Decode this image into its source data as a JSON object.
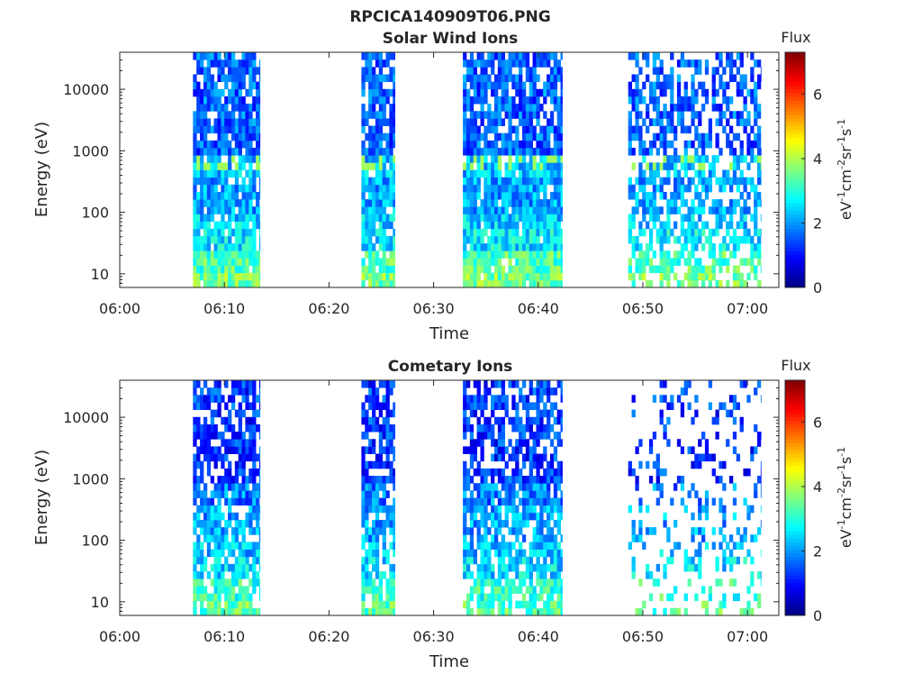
{
  "figure": {
    "title": "RPCICA140909T06.PNG"
  },
  "colorbar": {
    "label": "Flux",
    "unit_main": "eV",
    "unit_parts": [
      {
        "text": "eV",
        "sup": false
      },
      {
        "text": "-1",
        "sup": true
      },
      {
        "text": "cm",
        "sup": false
      },
      {
        "text": "-2",
        "sup": true
      },
      {
        "text": "sr",
        "sup": false
      },
      {
        "text": "-1",
        "sup": true
      },
      {
        "text": "s",
        "sup": false
      },
      {
        "text": "-1",
        "sup": true
      }
    ],
    "ticks": [
      0,
      2,
      4,
      6
    ],
    "range": [
      0,
      7.3
    ]
  },
  "chart_data": [
    {
      "type": "heatmap",
      "title": "Solar Wind Ions",
      "xlabel": "Time",
      "ylabel": "Energy (eV)",
      "x_ticks": [
        "06:00",
        "06:10",
        "06:20",
        "06:30",
        "06:40",
        "06:50",
        "07:00"
      ],
      "y_ticks": [
        "10",
        "100",
        "1000",
        "10000"
      ],
      "y_scale": "log",
      "x_range_min": [
        0,
        63
      ],
      "y_range_eV": [
        6,
        40000
      ],
      "data_intervals_min": [
        [
          7,
          13.4
        ],
        [
          23.1,
          26.3
        ],
        [
          32.8,
          42.3
        ],
        [
          48.6,
          61.3
        ]
      ],
      "flux_bands": [
        {
          "energy_eV": [
            6,
            10
          ],
          "flux": 3.6
        },
        {
          "energy_eV": [
            10,
            25
          ],
          "flux": 3.3
        },
        {
          "energy_eV": [
            25,
            50
          ],
          "flux": 2.6
        },
        {
          "energy_eV": [
            50,
            100
          ],
          "flux": 2.4
        },
        {
          "energy_eV": [
            100,
            400
          ],
          "flux": 2.1
        },
        {
          "energy_eV": [
            400,
            900
          ],
          "flux": 2.3
        },
        {
          "energy_eV": [
            900,
            40000
          ],
          "flux": 1.6
        }
      ],
      "peak_energy_eV": 650,
      "peak_flux": 3.9
    },
    {
      "type": "heatmap",
      "title": "Cometary Ions",
      "xlabel": "Time",
      "ylabel": "Energy (eV)",
      "x_ticks": [
        "06:00",
        "06:10",
        "06:20",
        "06:30",
        "06:40",
        "06:50",
        "07:00"
      ],
      "y_ticks": [
        "10",
        "100",
        "1000",
        "10000"
      ],
      "y_scale": "log",
      "x_range_min": [
        0,
        63
      ],
      "y_range_eV": [
        6,
        40000
      ],
      "data_intervals_min": [
        [
          7,
          13.4
        ],
        [
          23.1,
          26.3
        ],
        [
          32.8,
          42.3
        ],
        [
          48.6,
          61.3
        ]
      ],
      "flux_bands": [
        {
          "energy_eV": [
            6,
            10
          ],
          "flux": 3.4
        },
        {
          "energy_eV": [
            10,
            25
          ],
          "flux": 3.1
        },
        {
          "energy_eV": [
            25,
            50
          ],
          "flux": 2.5
        },
        {
          "energy_eV": [
            50,
            100
          ],
          "flux": 2.3
        },
        {
          "energy_eV": [
            100,
            400
          ],
          "flux": 2.1
        },
        {
          "energy_eV": [
            400,
            900
          ],
          "flux": 1.8
        },
        {
          "energy_eV": [
            900,
            40000
          ],
          "flux": 1.3
        }
      ],
      "peak_energy_eV": null,
      "peak_flux": null
    }
  ]
}
